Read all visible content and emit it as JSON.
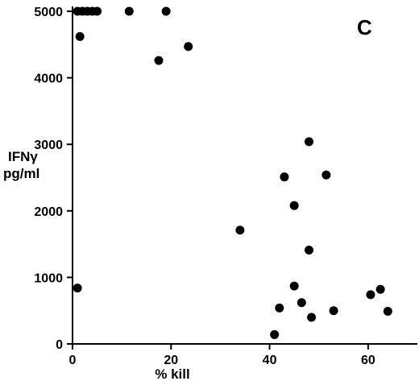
{
  "chart_data": {
    "type": "scatter",
    "panel_label": "C",
    "xlabel": "% kill",
    "ylabel_lines": [
      "IFNγ",
      "pg/ml"
    ],
    "xlim": [
      0,
      70
    ],
    "ylim": [
      0,
      5000
    ],
    "x_ticks": [
      0,
      20,
      40,
      60
    ],
    "y_ticks": [
      0,
      1000,
      2000,
      3000,
      4000,
      5000
    ],
    "x_tick_labels": [
      "0",
      "20",
      "40",
      "60"
    ],
    "y_tick_labels": [
      "0",
      "1000",
      "2000",
      "3000",
      "4000",
      "5000"
    ],
    "grid": false,
    "points": [
      {
        "x": 1.0,
        "y": 5000
      },
      {
        "x": 2.0,
        "y": 5000
      },
      {
        "x": 3.0,
        "y": 5000
      },
      {
        "x": 4.0,
        "y": 5000
      },
      {
        "x": 5.0,
        "y": 5000
      },
      {
        "x": 11.5,
        "y": 5000
      },
      {
        "x": 19.0,
        "y": 5000
      },
      {
        "x": 1.5,
        "y": 4620
      },
      {
        "x": 17.5,
        "y": 4260
      },
      {
        "x": 23.5,
        "y": 4470
      },
      {
        "x": 1.0,
        "y": 840
      },
      {
        "x": 34.0,
        "y": 1710
      },
      {
        "x": 48.0,
        "y": 3040
      },
      {
        "x": 43.0,
        "y": 2510
      },
      {
        "x": 51.5,
        "y": 2540
      },
      {
        "x": 45.0,
        "y": 2080
      },
      {
        "x": 48.0,
        "y": 1410
      },
      {
        "x": 45.0,
        "y": 870
      },
      {
        "x": 42.0,
        "y": 540
      },
      {
        "x": 46.5,
        "y": 620
      },
      {
        "x": 48.5,
        "y": 400
      },
      {
        "x": 53.0,
        "y": 500
      },
      {
        "x": 41.0,
        "y": 140
      },
      {
        "x": 60.5,
        "y": 740
      },
      {
        "x": 62.5,
        "y": 820
      },
      {
        "x": 64.0,
        "y": 490
      }
    ]
  }
}
